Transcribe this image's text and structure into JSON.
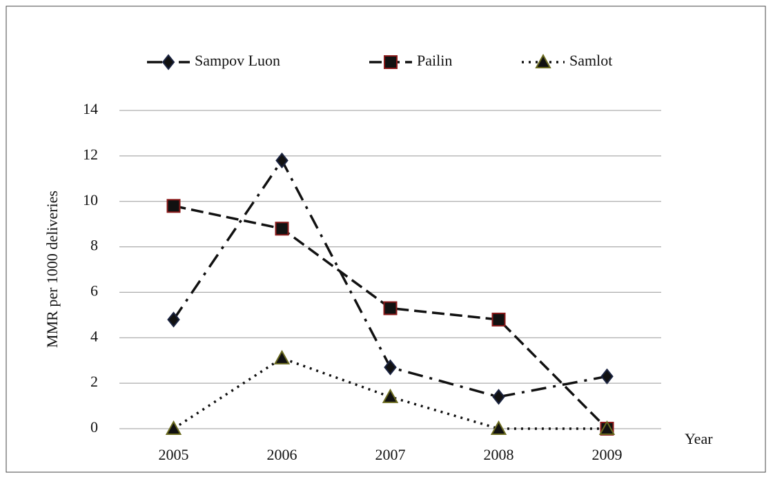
{
  "chart_data": {
    "type": "line",
    "x_label": "Year",
    "y_label": "MMR per 1000 deliveries",
    "categories": [
      "2005",
      "2006",
      "2007",
      "2008",
      "2009"
    ],
    "series": [
      {
        "name": "Sampov Luon",
        "color": "#111111",
        "line_style": "dashdot",
        "marker": "diamond",
        "marker_edge": "#1a2340",
        "values": [
          4.8,
          11.8,
          2.7,
          1.4,
          2.3
        ]
      },
      {
        "name": "Pailin",
        "color": "#111111",
        "line_style": "dashed",
        "marker": "square",
        "marker_edge": "#8b1a1a",
        "values": [
          9.8,
          8.8,
          5.3,
          4.8,
          0
        ]
      },
      {
        "name": "Samlot",
        "color": "#111111",
        "line_style": "dotted",
        "marker": "triangle",
        "marker_edge": "#6b6b20",
        "values": [
          0,
          3.1,
          1.4,
          0,
          0
        ]
      }
    ],
    "ylim": [
      0,
      14
    ],
    "yticks": [
      0,
      2,
      4,
      6,
      8,
      10,
      12,
      14
    ],
    "grid": true,
    "legend": "top"
  }
}
